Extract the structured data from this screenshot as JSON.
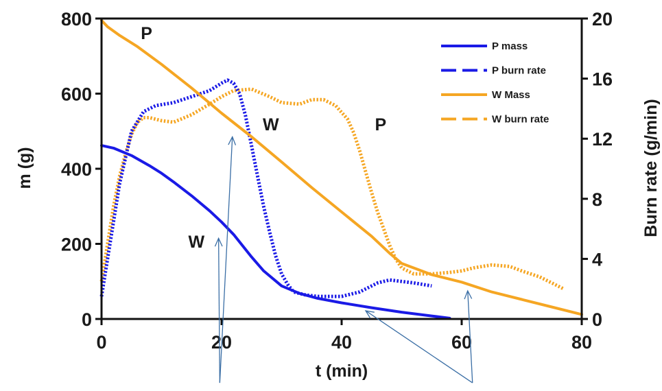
{
  "chart_data": {
    "type": "line",
    "xlabel": "t (min)",
    "ylabel": "m (g)",
    "y2label": "Burn rate (g/min)",
    "xlim": [
      0,
      80
    ],
    "ylim": [
      0,
      800
    ],
    "y2lim": [
      0,
      20
    ],
    "xticks": [
      0,
      20,
      40,
      60,
      80
    ],
    "yticks": [
      0,
      200,
      400,
      600,
      800
    ],
    "y2ticks": [
      0,
      4,
      8,
      12,
      16,
      20
    ],
    "legend_position": "top-right",
    "grid": false,
    "series": [
      {
        "name": "P mass",
        "axis": "left",
        "color": "#1a1ae6",
        "style": "solid",
        "x": [
          0,
          2,
          5,
          8,
          10,
          12,
          15,
          18,
          20,
          22,
          25,
          27,
          30,
          33,
          36,
          40,
          45,
          50,
          55,
          58
        ],
        "y": [
          462,
          455,
          435,
          408,
          388,
          365,
          328,
          288,
          258,
          225,
          165,
          128,
          88,
          68,
          55,
          43,
          30,
          18,
          8,
          2
        ]
      },
      {
        "name": "P burn rate",
        "axis": "right",
        "color": "#1a1ae6",
        "style": "dotted",
        "x": [
          0,
          1,
          3,
          5,
          7,
          9,
          12,
          15,
          18,
          20,
          21,
          22,
          23,
          24,
          25,
          26,
          27,
          28,
          29,
          30,
          31,
          32,
          34,
          36,
          40,
          43,
          46,
          48,
          50,
          52,
          55
        ],
        "y": [
          1.5,
          4,
          9,
          12.5,
          13.8,
          14.2,
          14.4,
          14.8,
          15.2,
          15.7,
          15.9,
          15.7,
          15,
          13.5,
          11.5,
          9.5,
          7.5,
          5.8,
          4.2,
          3,
          2.3,
          1.8,
          1.6,
          1.5,
          1.5,
          1.8,
          2.4,
          2.6,
          2.5,
          2.4,
          2.2
        ]
      },
      {
        "name": "W Mass",
        "axis": "left",
        "color": "#f5a623",
        "style": "solid",
        "x": [
          0,
          1,
          3,
          6,
          10,
          15,
          20,
          25,
          30,
          35,
          40,
          45,
          48,
          50,
          55,
          60,
          65,
          70,
          75,
          80
        ],
        "y": [
          795,
          778,
          755,
          725,
          678,
          615,
          548,
          485,
          418,
          350,
          285,
          220,
          175,
          148,
          118,
          98,
          72,
          52,
          32,
          12
        ]
      },
      {
        "name": "W burn rate",
        "axis": "right",
        "color": "#f5a623",
        "style": "dotted",
        "x": [
          0,
          1,
          2,
          3,
          4,
          5,
          6,
          7,
          8,
          10,
          12,
          15,
          18,
          20,
          22,
          25,
          28,
          30,
          33,
          35,
          37,
          39,
          41,
          42,
          43,
          44,
          45,
          46,
          47,
          48,
          49,
          50,
          52,
          55,
          58,
          60,
          62,
          65,
          68,
          70,
          73,
          75,
          77
        ],
        "y": [
          2.5,
          5,
          7.5,
          9.5,
          11,
          12.3,
          13.1,
          13.4,
          13.4,
          13.2,
          13.1,
          13.6,
          14.3,
          14.8,
          15.2,
          15.3,
          14.8,
          14.4,
          14.3,
          14.6,
          14.6,
          14.2,
          13.3,
          12.4,
          11.2,
          9.8,
          8.4,
          7.1,
          6,
          4.9,
          4,
          3.4,
          3,
          3,
          3.1,
          3.2,
          3.4,
          3.6,
          3.5,
          3.2,
          2.8,
          2.4,
          2.0
        ]
      }
    ],
    "annotations": [
      {
        "text": "P",
        "x": 7.5,
        "y": 745
      },
      {
        "text": "W",
        "x": 28.2,
        "y": 502
      },
      {
        "text": "P",
        "x": 46.5,
        "y": 502
      },
      {
        "text": "W",
        "x": 15.8,
        "y": 190
      }
    ],
    "arrows": [
      {
        "from": [
          19.7,
          -170
        ],
        "to": [
          21.8,
          485
        ]
      },
      {
        "from": [
          19.7,
          -170
        ],
        "to": [
          19.5,
          215
        ]
      },
      {
        "from": [
          61.8,
          -170
        ],
        "to": [
          44,
          22
        ]
      },
      {
        "from": [
          61.8,
          -170
        ],
        "to": [
          61.0,
          75
        ]
      }
    ]
  }
}
